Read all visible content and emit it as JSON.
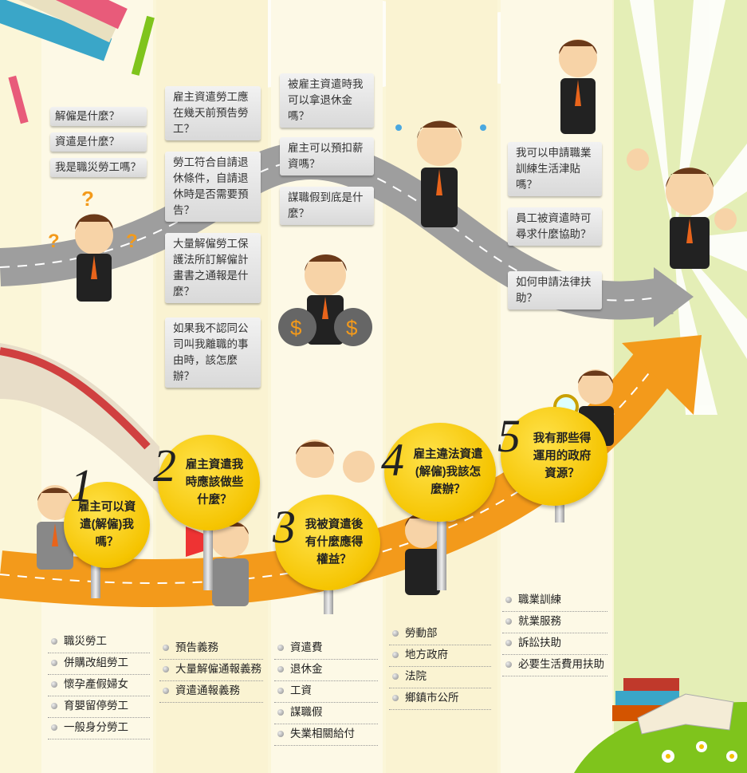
{
  "colors": {
    "stripe": "#fbf6d8",
    "green_bg": "#e4eeb6",
    "road": "#a9a9a9",
    "arrow": "#f39a1b",
    "circle": "#f5c400"
  },
  "faq_col1": [
    "解僱是什麼？",
    "資遣是什麼？",
    "我是職災勞工嗎？"
  ],
  "faq_col2": [
    "雇主資遣勞工應在幾天前預告勞工？",
    "勞工符合自請退休條件，自請退休時是否需要預告？",
    "大量解僱勞工保護法所訂解僱計畫書之通報是什麼？",
    "如果我不認同公司叫我離職的事由時，該怎麼辦？"
  ],
  "faq_col3": [
    "被雇主資遣時我可以拿退休金嗎？",
    "雇主可以預扣薪資嗎？",
    "謀職假到底是什麼？"
  ],
  "faq_col4": [
    "我可以申請職業訓練生活津貼嗎？",
    "員工被資遣時可尋求什麼協助？",
    "如何申請法律扶助？"
  ],
  "steps": [
    {
      "num": "1",
      "text": "雇主可以資遣(解僱)我嗎？"
    },
    {
      "num": "2",
      "text": "雇主資遣我時應該做些什麼？"
    },
    {
      "num": "3",
      "text": "我被資遣後有什麼應得權益？"
    },
    {
      "num": "4",
      "text": "雇主違法資遣(解僱)我該怎麼辦？"
    },
    {
      "num": "5",
      "text": "我有那些得運用的政府資源？"
    }
  ],
  "links1": [
    "職災勞工",
    "併購改組勞工",
    "懷孕產假婦女",
    "育嬰留停勞工",
    "一般身分勞工"
  ],
  "links2": [
    "預告義務",
    "大量解僱通報義務",
    "資遣通報義務"
  ],
  "links3": [
    "資遣費",
    "退休金",
    "工資",
    "謀職假",
    "失業相關給付"
  ],
  "links4": [
    "勞動部",
    "地方政府",
    "法院",
    "鄉鎮市公所"
  ],
  "links5": [
    "職業訓練",
    "就業服務",
    "訴訟扶助",
    "必要生活費用扶助"
  ],
  "icons": [
    "books-icon",
    "pencil-icon",
    "question-mark-icon",
    "money-bag-icon",
    "magnifier-icon",
    "megaphone-icon",
    "flower-icon"
  ]
}
